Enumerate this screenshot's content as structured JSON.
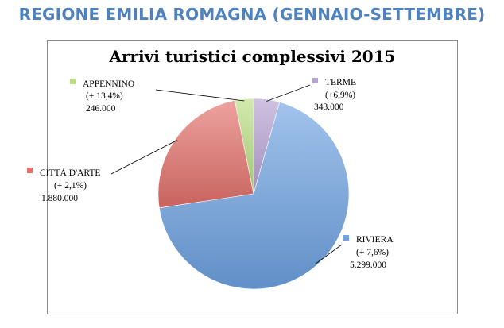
{
  "header": {
    "title": "REGIONE EMILIA ROMAGNA (GENNAIO-SETTEMBRE)"
  },
  "chart_data": {
    "type": "pie",
    "title": "Arrivi turistici complessivi 2015",
    "legend": "none",
    "slices": [
      {
        "name": "TERME",
        "change": "(+6,9%)",
        "value_label": "343.000",
        "value": 343000,
        "color": "#b7a1d3"
      },
      {
        "name": "RIVIERA",
        "change": "(+ 7,6%)",
        "value_label": "5.299.000",
        "value": 5299000,
        "color": "#6ea3e2"
      },
      {
        "name": "CITTÀ D'ARTE",
        "change": "(+ 2,1%)",
        "value_label": "1.880.000",
        "value": 1880000,
        "color": "#e3706b"
      },
      {
        "name": "APPENNINO",
        "change": "(+ 13,4%)",
        "value_label": "246.000",
        "value": 246000,
        "color": "#b9df82"
      }
    ]
  }
}
